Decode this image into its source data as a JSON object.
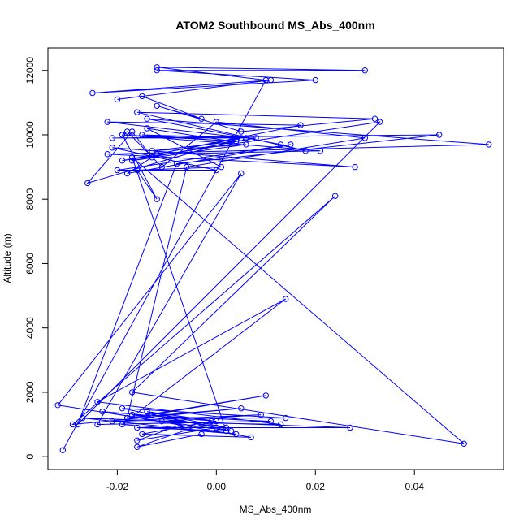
{
  "chart_data": {
    "type": "line",
    "title": "ATOM2 Southbound MS_Abs_400nm",
    "xlabel": "MS_Abs_400nm",
    "ylabel": "Altitude (m)",
    "xlim": [
      -0.034,
      0.058
    ],
    "ylim": [
      -400,
      12700
    ],
    "x_ticks": [
      -0.02,
      0.0,
      0.02,
      0.04
    ],
    "x_tick_labels": [
      "-0.02",
      "0.00",
      "0.02",
      "0.04"
    ],
    "y_ticks": [
      0,
      2000,
      4000,
      6000,
      8000,
      10000,
      12000
    ],
    "y_tick_labels": [
      "0",
      "2000",
      "4000",
      "6000",
      "8000",
      "10000",
      "12000"
    ],
    "grid": false,
    "color": "#0000ff",
    "series": [
      {
        "x": [
          -0.031,
          0.01,
          -0.012,
          0.03,
          -0.012,
          0.02,
          -0.025,
          0.011,
          -0.02,
          -0.015,
          -0.003,
          -0.012,
          0.005,
          0.032,
          -0.016,
          0.018,
          0.013,
          -0.014,
          0.055,
          -0.022,
          0.028,
          -0.021,
          0.0,
          -0.02,
          0.015,
          -0.018,
          -0.013,
          -0.017,
          -0.026,
          0.005,
          -0.019,
          0.033,
          -0.028,
          -0.008,
          0.045,
          -0.021,
          0.008,
          -0.017,
          0.006,
          -0.013,
          0.004,
          -0.019,
          0.021,
          -0.012,
          0.017,
          -0.022,
          0.006,
          -0.015,
          0.003,
          -0.014,
          0.001,
          -0.016,
          -0.012,
          -0.019,
          -0.018,
          -0.011,
          0.0,
          0.03,
          -0.006,
          -0.018,
          0.005,
          -0.029,
          0.024,
          -0.017,
          0.05,
          -0.017,
          0.002,
          -0.016,
          0.027,
          -0.027,
          0.004,
          -0.019,
          0.014,
          -0.024,
          0.013,
          -0.021,
          0.009,
          -0.011,
          0.003,
          -0.013,
          0.01,
          -0.018,
          0.014,
          -0.019,
          0.0,
          -0.016,
          -0.007,
          -0.032,
          0.005,
          -0.024,
          0.011,
          -0.017,
          0.002,
          -0.014,
          0.0,
          -0.023,
          0.007,
          -0.015,
          -0.001,
          -0.016,
          -0.003
        ],
        "y": [
          200,
          11700,
          12100,
          12000,
          12000,
          11700,
          11300,
          11700,
          11100,
          11200,
          10500,
          10900,
          10100,
          10500,
          10700,
          9500,
          9700,
          10500,
          9700,
          9400,
          9000,
          9600,
          8900,
          8900,
          9700,
          8800,
          9300,
          10100,
          8500,
          9900,
          9200,
          10400,
          1000,
          9100,
          10000,
          9900,
          9900,
          9200,
          9700,
          9500,
          9800,
          10000,
          9500,
          9400,
          10300,
          10400,
          9900,
          10000,
          9800,
          10200,
          9000,
          8900,
          8000,
          10000,
          10100,
          9000,
          10400,
          9900,
          9000,
          1200,
          1500,
          1000,
          8100,
          2000,
          400,
          9300,
          800,
          900,
          900,
          1200,
          700,
          1000,
          4900,
          1700,
          1000,
          1100,
          1300,
          1100,
          800,
          1300,
          1900,
          1200,
          1200,
          1500,
          900,
          500,
          1000,
          1600,
          8800,
          1000,
          1100,
          1300,
          900,
          1400,
          1100,
          1400,
          600,
          700,
          1100,
          300,
          700
        ]
      }
    ]
  }
}
